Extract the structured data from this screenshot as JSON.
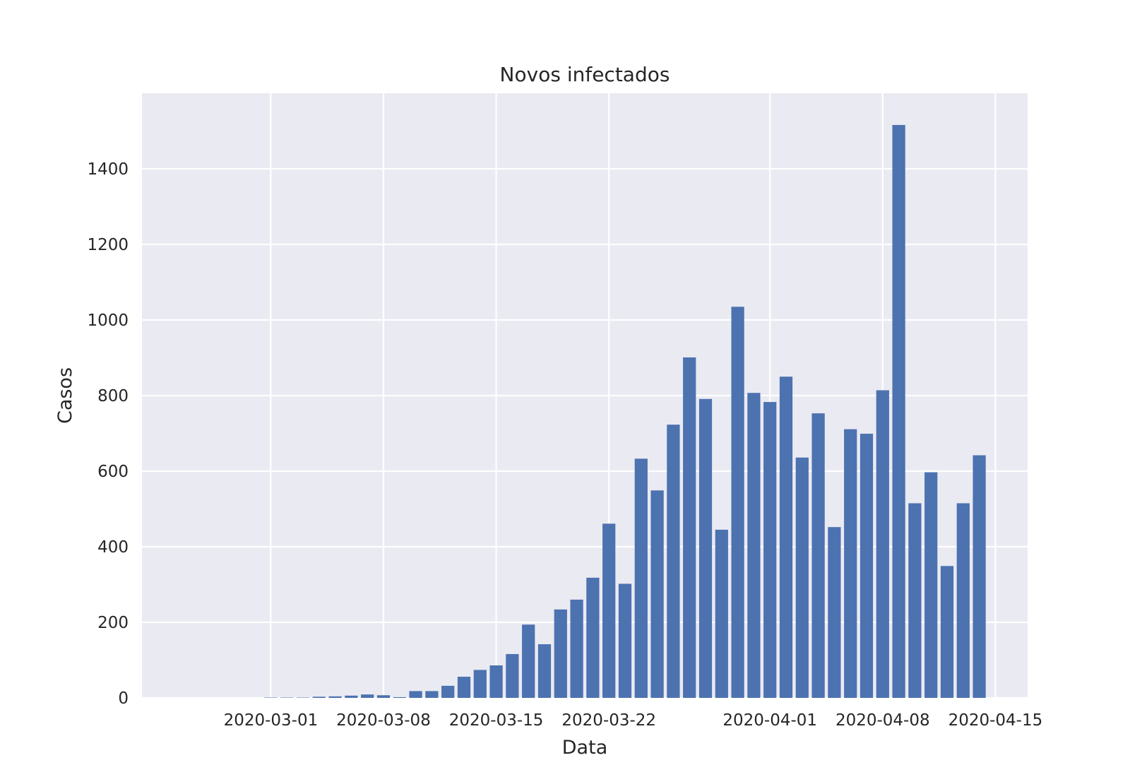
{
  "chart_data": {
    "type": "bar",
    "title": "Novos infectados",
    "xlabel": "Data",
    "ylabel": "Casos",
    "x_tick_labels": [
      "2020-03-01",
      "2020-03-08",
      "2020-03-15",
      "2020-03-22",
      "2020-04-01",
      "2020-04-08",
      "2020-04-15"
    ],
    "y_tick_labels": [
      "0",
      "200",
      "400",
      "600",
      "800",
      "1000",
      "1200",
      "1400"
    ],
    "ylim": [
      0,
      1600
    ],
    "xlim": [
      "2020-02-22",
      "2020-04-17"
    ],
    "grid": true,
    "colors": {
      "bar": "#4c72b0",
      "plot_background": "#eaeaf2",
      "grid": "#ffffff",
      "text": "#262626"
    },
    "categories": [
      "2020-02-26",
      "2020-02-27",
      "2020-02-28",
      "2020-02-29",
      "2020-03-01",
      "2020-03-02",
      "2020-03-03",
      "2020-03-04",
      "2020-03-05",
      "2020-03-06",
      "2020-03-07",
      "2020-03-08",
      "2020-03-09",
      "2020-03-10",
      "2020-03-11",
      "2020-03-12",
      "2020-03-13",
      "2020-03-14",
      "2020-03-15",
      "2020-03-16",
      "2020-03-17",
      "2020-03-18",
      "2020-03-19",
      "2020-03-20",
      "2020-03-21",
      "2020-03-22",
      "2020-03-23",
      "2020-03-24",
      "2020-03-25",
      "2020-03-26",
      "2020-03-27",
      "2020-03-28",
      "2020-03-29",
      "2020-03-30",
      "2020-03-31",
      "2020-04-01",
      "2020-04-02",
      "2020-04-03",
      "2020-04-04",
      "2020-04-05",
      "2020-04-06",
      "2020-04-07",
      "2020-04-08",
      "2020-04-09",
      "2020-04-10",
      "2020-04-11",
      "2020-04-12",
      "2020-04-13",
      "2020-04-14"
    ],
    "values": [
      0,
      0,
      0,
      0,
      1,
      1,
      1,
      3,
      4,
      6,
      9,
      7,
      2,
      18,
      18,
      32,
      56,
      74,
      86,
      116,
      194,
      142,
      234,
      260,
      318,
      461,
      302,
      633,
      549,
      723,
      901,
      791,
      445,
      1035,
      807,
      783,
      850,
      636,
      753,
      452,
      711,
      699,
      814,
      1516,
      515,
      597,
      349,
      515,
      642
    ]
  }
}
